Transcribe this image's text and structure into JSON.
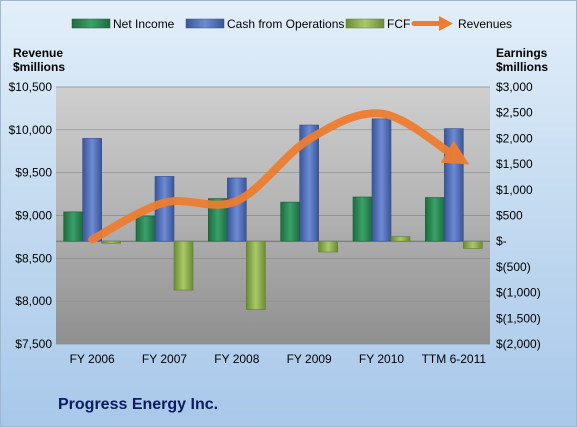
{
  "company": "Progress Energy Inc.",
  "chart_data": {
    "type": "bar",
    "categories": [
      "FY 2006",
      "FY 2007",
      "FY 2008",
      "FY 2009",
      "FY 2010",
      "TTM 6-2011"
    ],
    "left_axis": {
      "label_line1": "Revenue",
      "label_line2": "$millions",
      "ylim": [
        7500,
        10500
      ],
      "ticks": [
        7500,
        8000,
        8500,
        9000,
        9500,
        10000,
        10500
      ],
      "tick_labels": [
        "$7,500",
        "$8,000",
        "$8,500",
        "$9,000",
        "$9,500",
        "$10,000",
        "$10,500"
      ]
    },
    "right_axis": {
      "label_line1": "Earnings",
      "label_line2": "$millions",
      "ylim": [
        -2000,
        3000
      ],
      "ticks": [
        -2000,
        -1500,
        -1000,
        -500,
        0,
        500,
        1000,
        1500,
        2000,
        2500,
        3000
      ],
      "tick_labels": [
        "$(2,000)",
        "$(1,500)",
        "$(1,000)",
        "$(500)",
        "$-",
        "$500",
        "$1,000",
        "$1,500",
        "$2,000",
        "$2,500",
        "$3,000"
      ]
    },
    "series": [
      {
        "name": "Net Income",
        "axis": "right",
        "kind": "bar",
        "color": "#2e8b57",
        "values": [
          570,
          490,
          830,
          760,
          860,
          850
        ]
      },
      {
        "name": "Cash from Operations",
        "axis": "right",
        "kind": "bar",
        "color": "#4f6fc0",
        "values": [
          2000,
          1260,
          1230,
          2260,
          2380,
          2190
        ]
      },
      {
        "name": "FCF",
        "axis": "right",
        "kind": "bar",
        "color": "#8db04d",
        "values": [
          -40,
          -950,
          -1330,
          -210,
          90,
          -140
        ]
      },
      {
        "name": "Revenues",
        "axis": "left",
        "kind": "line",
        "color": "#ee7d30",
        "values": [
          8720,
          9150,
          9170,
          9890,
          10190,
          9700
        ]
      }
    ],
    "grid": true,
    "legend_position": "top"
  }
}
